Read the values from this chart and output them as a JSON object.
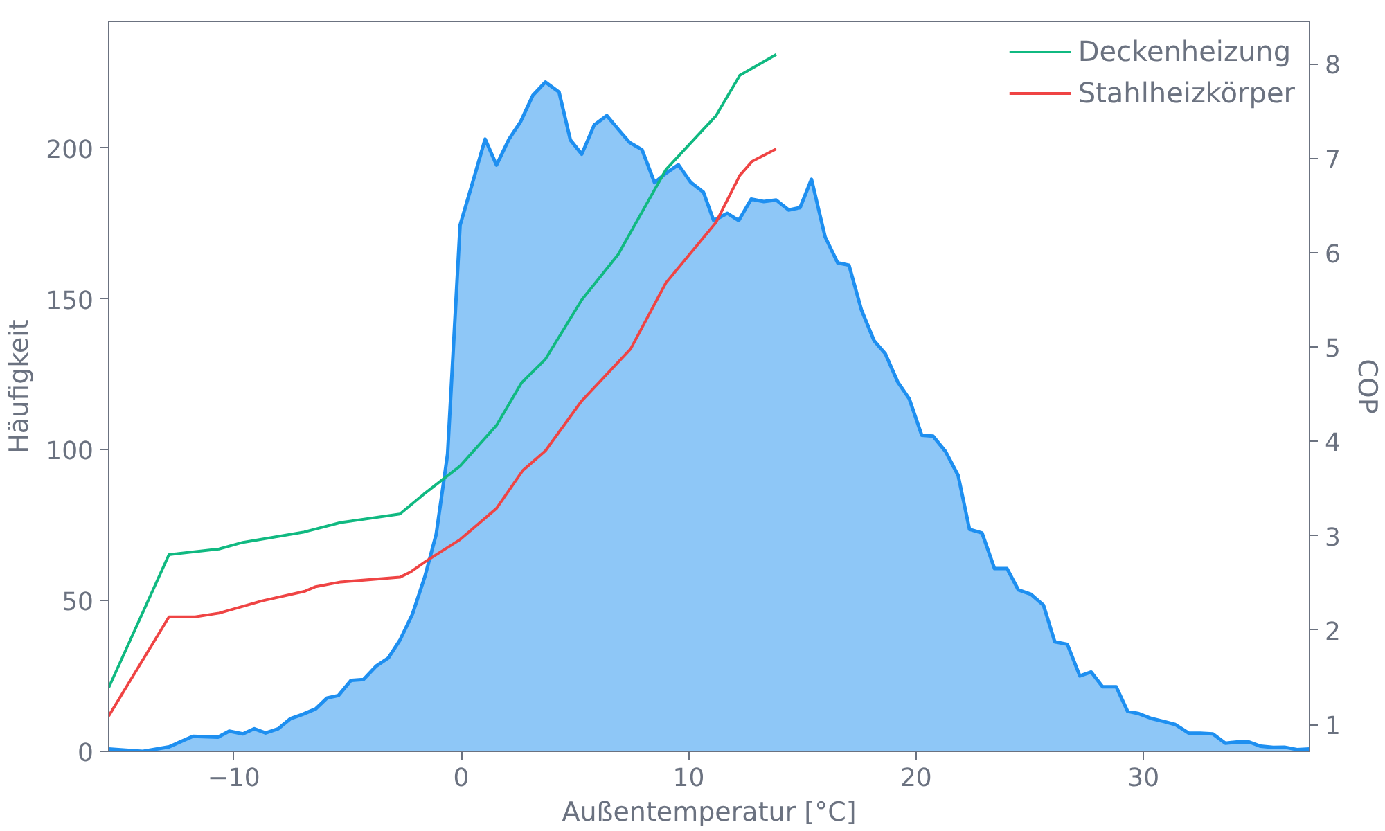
{
  "chart_data": {
    "type": "area",
    "xlabel": "Außentemperatur [°C]",
    "ylabel": "Häufigkeit",
    "y2label": "COP",
    "xlim": [
      -15.5,
      37.3
    ],
    "ylim": [
      0,
      242
    ],
    "y2lim": [
      0.715,
      8.45
    ],
    "xticks": [
      {
        "value": -10,
        "label": "−10"
      },
      0,
      10,
      20,
      30
    ],
    "yticks": [
      0,
      50,
      100,
      150,
      200
    ],
    "y2ticks": [
      1,
      2,
      3,
      4,
      5,
      6,
      7,
      8
    ],
    "grid": false,
    "legend": "top right",
    "series": [
      {
        "color": "#1e8ff0",
        "axis": "y",
        "x": [
          -15.5,
          -14.0,
          -12.85,
          -11.8,
          -10.7,
          -10.2,
          -9.6,
          -9.1,
          -8.6,
          -8.05,
          -7.5,
          -7.0,
          -6.4,
          -5.9,
          -5.4,
          -4.85,
          -4.3,
          -3.75,
          -3.2,
          -2.7,
          -2.15,
          -1.6,
          -1.1,
          -0.6,
          -0.05,
          0.5,
          1.05,
          1.55,
          2.1,
          2.6,
          3.15,
          3.7,
          4.3,
          4.8,
          5.3,
          5.85,
          6.4,
          6.9,
          7.4,
          7.95,
          8.5,
          9.0,
          9.55,
          10.1,
          10.65,
          11.1,
          11.7,
          12.2,
          12.75,
          13.3,
          13.85,
          14.4,
          14.9,
          15.4,
          16.0,
          16.55,
          17.05,
          17.6,
          18.15,
          18.65,
          19.2,
          19.7,
          20.25,
          20.75,
          21.3,
          21.85,
          22.35,
          22.9,
          23.45,
          24.0,
          24.5,
          25.05,
          25.6,
          26.1,
          26.65,
          27.2,
          27.7,
          28.2,
          28.8,
          29.3,
          29.8,
          30.35,
          30.9,
          31.4,
          32.0,
          32.5,
          33.05,
          33.6,
          34.1,
          34.65,
          35.15,
          35.7,
          36.2,
          36.75,
          37.3
        ],
        "values": [
          0.8,
          0,
          1.5,
          5.0,
          4.7,
          6.7,
          5.8,
          7.5,
          6.1,
          7.5,
          10.9,
          12.2,
          14.1,
          17.7,
          18.5,
          23.5,
          23.8,
          28.2,
          31,
          36.8,
          45.4,
          57.9,
          72,
          98.6,
          174.5,
          188.6,
          203,
          194.4,
          203,
          208.6,
          217.5,
          221.9,
          218.6,
          202.7,
          198,
          207.7,
          210.8,
          206.3,
          201.9,
          199.5,
          188.6,
          191.7,
          194.5,
          188.6,
          185.4,
          176,
          178.4,
          176,
          183.1,
          182.3,
          182.8,
          179.5,
          180.3,
          189.7,
          170.6,
          162,
          161.2,
          146.3,
          136.2,
          131.8,
          122.4,
          116.9,
          104.8,
          104.5,
          99.4,
          91.5,
          73.6,
          72.4,
          60.6,
          60.6,
          53.5,
          52.1,
          48.5,
          36.3,
          35.5,
          25,
          26.3,
          21.4,
          21.4,
          13.3,
          12.5,
          10.9,
          9.9,
          8.9,
          6,
          6,
          5.8,
          2.7,
          3.1,
          3.1,
          1.7,
          1.3,
          1.4,
          0.6,
          0.8
        ]
      },
      {
        "type": "line",
        "name": "Deckenheizung",
        "color": "#10b981",
        "axis": "y2",
        "x": [
          -15.5,
          -12.85,
          -10.65,
          -9.6,
          -6.9,
          -5.3,
          -2.7,
          -1.65,
          -0.05,
          1.55,
          2.65,
          3.7,
          5.3,
          6.9,
          9.0,
          11.2,
          12.25,
          13.85
        ],
        "values": [
          1.39,
          2.8,
          2.86,
          2.93,
          3.04,
          3.14,
          3.23,
          3.44,
          3.74,
          4.17,
          4.62,
          4.87,
          5.5,
          5.98,
          6.88,
          7.45,
          7.88,
          8.1
        ]
      },
      {
        "type": "line",
        "name": "Stahlheizkörper",
        "color": "#ef4444",
        "axis": "y2",
        "x": [
          -15.5,
          -12.85,
          -11.7,
          -10.65,
          -8.75,
          -6.9,
          -6.4,
          -5.3,
          -2.7,
          -2.2,
          -1.55,
          -0.05,
          1.55,
          2.7,
          3.7,
          5.3,
          7.45,
          9.0,
          11.2,
          12.25,
          12.8,
          13.85
        ],
        "values": [
          1.09,
          2.14,
          2.14,
          2.18,
          2.31,
          2.41,
          2.46,
          2.51,
          2.56,
          2.62,
          2.73,
          2.96,
          3.29,
          3.69,
          3.9,
          4.43,
          4.98,
          5.68,
          6.32,
          6.82,
          6.97,
          7.1
        ]
      }
    ]
  }
}
